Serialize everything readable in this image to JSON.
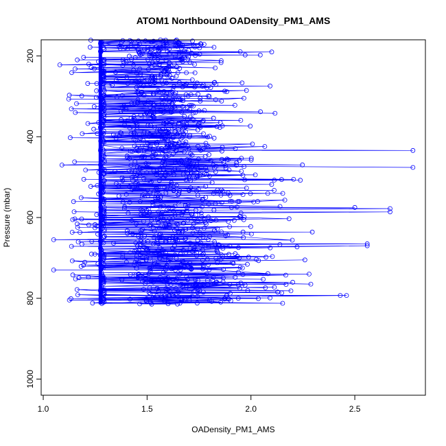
{
  "chart_data": {
    "type": "scatter",
    "title": "ATOM1 Northbound OADensity_PM1_AMS",
    "xlabel": "OADensity_PM1_AMS",
    "ylabel": "Pressure (mbar)",
    "xlim": [
      0.99,
      2.84
    ],
    "ylim": [
      1040,
      160
    ],
    "y_reversed": true,
    "x_ticks": [
      "1.0",
      "1.5",
      "2.0",
      "2.5"
    ],
    "y_ticks": [
      "200",
      "400",
      "600",
      "800",
      "1000"
    ],
    "marker": "open-circle",
    "connected_by_line": true,
    "series_color": "#0000ff",
    "grid": false,
    "profile_highlights": [
      {
        "x": 2.78,
        "y": 434
      },
      {
        "x": 2.78,
        "y": 476
      },
      {
        "x": 2.67,
        "y": 578
      },
      {
        "x": 2.67,
        "y": 586
      },
      {
        "x": 2.56,
        "y": 665
      },
      {
        "x": 2.56,
        "y": 670
      },
      {
        "x": 2.5,
        "y": 575
      },
      {
        "x": 2.46,
        "y": 793
      },
      {
        "x": 2.43,
        "y": 793
      },
      {
        "x": 2.26,
        "y": 705
      },
      {
        "x": 2.28,
        "y": 740
      },
      {
        "x": 2.1,
        "y": 190
      },
      {
        "x": 1.05,
        "y": 655
      },
      {
        "x": 1.05,
        "y": 730
      },
      {
        "x": 1.08,
        "y": 222
      },
      {
        "x": 1.09,
        "y": 470
      },
      {
        "x": 1.16,
        "y": 318
      }
    ],
    "dense_region": {
      "x_core": [
        1.28,
        1.95
      ],
      "y_range": [
        160,
        815
      ]
    },
    "vertical_baseline": {
      "x": 1.275,
      "y_range": [
        160,
        815
      ]
    }
  }
}
